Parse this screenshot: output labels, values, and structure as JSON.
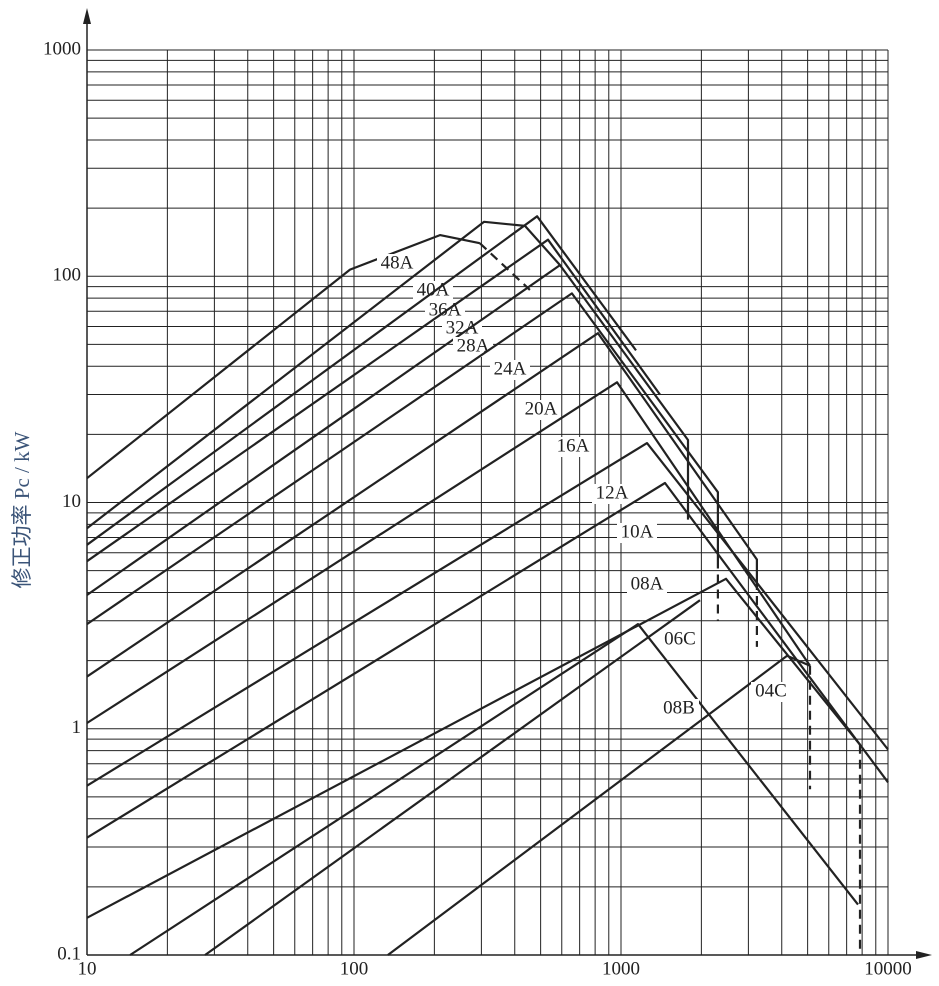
{
  "chart_data": {
    "type": "line",
    "ylabel": "修正功率 Pc / kW",
    "xscale": "log",
    "yscale": "log",
    "grid": true,
    "color": "#222222",
    "xlim": [
      10,
      10000
    ],
    "xticks": [
      10,
      100,
      1000,
      10000
    ],
    "ylim": [
      0.1,
      1000
    ],
    "yticks": [
      0.1,
      1,
      10,
      100,
      1000
    ],
    "xgrid": [
      20,
      30,
      40,
      50,
      60,
      70,
      80,
      90,
      200,
      300,
      400,
      500,
      600,
      700,
      800,
      900,
      2000,
      3000,
      4000,
      5000,
      6000,
      7000,
      8000,
      9000
    ],
    "ygrid": [
      0.2,
      0.3,
      0.4,
      0.5,
      0.6,
      0.7,
      0.8,
      0.9,
      2,
      3,
      4,
      5,
      6,
      7,
      8,
      9,
      20,
      30,
      40,
      50,
      60,
      70,
      80,
      90,
      200,
      300,
      400,
      500,
      600,
      700,
      800,
      900
    ],
    "series": [
      {
        "name": "48A",
        "x": [
          10,
          96.6,
          210,
          296
        ],
        "values": [
          12.8,
          107,
          152,
          140
        ],
        "dashed_x": [
          296,
          456
        ],
        "dashed_values": [
          140,
          87
        ]
      },
      {
        "name": "40A",
        "x": [
          10,
          307,
          437,
          591
        ],
        "values": [
          7.7,
          174,
          167,
          112
        ]
      },
      {
        "name": "36A",
        "x": [
          10,
          485,
          1138
        ],
        "values": [
          6.5,
          184,
          47
        ]
      },
      {
        "name": "32A",
        "x": [
          10,
          533,
          1400
        ],
        "values": [
          5.5,
          145,
          30
        ]
      },
      {
        "name": "28A",
        "x": [
          10,
          591,
          1782,
          1782
        ],
        "values": [
          3.9,
          112,
          18.9,
          8.4
        ]
      },
      {
        "name": "24A",
        "x": [
          10,
          655,
          2307,
          2307
        ],
        "values": [
          2.9,
          84,
          11.1,
          5.6
        ],
        "dashed_x": [
          2307,
          2307
        ],
        "dashed_values": [
          5.6,
          3.0
        ]
      },
      {
        "name": "20A",
        "x": [
          10,
          820,
          3228,
          3228
        ],
        "values": [
          1.7,
          56,
          5.6,
          4.5
        ],
        "dashed_x": [
          3228,
          3228
        ],
        "dashed_values": [
          4.5,
          2.3
        ]
      },
      {
        "name": "16A",
        "x": [
          10,
          966,
          5105
        ],
        "values": [
          1.06,
          34,
          1.9
        ]
      },
      {
        "name": "12A",
        "x": [
          10,
          1251,
          10000
        ],
        "values": [
          0.56,
          18.3,
          0.81
        ]
      },
      {
        "name": "10A",
        "x": [
          10,
          1462,
          10000
        ],
        "values": [
          0.33,
          12.2,
          0.58
        ]
      },
      {
        "name": "08A",
        "x": [
          10,
          2473,
          7852
        ],
        "values": [
          0.146,
          4.6,
          0.85
        ],
        "dashed_x": [
          7852,
          7852
        ],
        "dashed_values": [
          0.85,
          0.1
        ]
      },
      {
        "name": "06C",
        "x": [
          27.7,
          1977
        ],
        "values": [
          0.1,
          3.7
        ]
      },
      {
        "name": "08B",
        "x": [
          14.5,
          1158,
          7722
        ],
        "values": [
          0.1,
          2.9,
          0.167
        ]
      },
      {
        "name": "04C",
        "x": [
          134,
          4188,
          5105
        ],
        "values": [
          0.1,
          2.1,
          1.9
        ],
        "dashed_x": [
          5105,
          5105
        ],
        "dashed_values": [
          1.9,
          0.54
        ]
      }
    ]
  }
}
